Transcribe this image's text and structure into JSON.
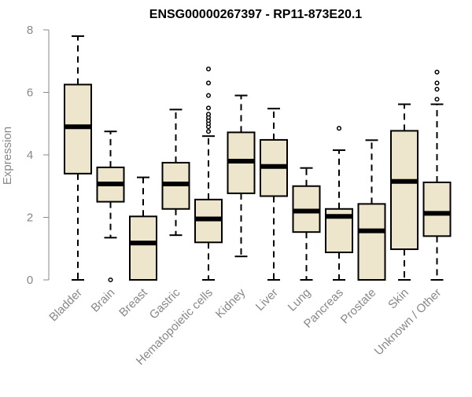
{
  "chart_data": {
    "type": "boxplot",
    "title": "ENSG00000267397 - RP11-873E20.1",
    "ylabel": "Expression",
    "ylim": [
      0,
      8
    ],
    "yticks": [
      "0",
      "2",
      "4",
      "6",
      "8"
    ],
    "categories": [
      "Bladder",
      "Brain",
      "Breast",
      "Gastric",
      "Hematopoietic cells",
      "Kidney",
      "Liver",
      "Lung",
      "Pancreas",
      "Prostate",
      "Skin",
      "Unknown / Other"
    ],
    "boxes": [
      {
        "min": 0.0,
        "q1": 3.4,
        "median": 4.9,
        "q3": 6.25,
        "max": 7.8,
        "outliers": []
      },
      {
        "min": 1.35,
        "q1": 2.5,
        "median": 3.07,
        "q3": 3.6,
        "max": 4.75,
        "outliers": [
          0.0
        ]
      },
      {
        "min": 0.0,
        "q1": 0.0,
        "median": 1.18,
        "q3": 2.03,
        "max": 3.28,
        "outliers": []
      },
      {
        "min": 1.43,
        "q1": 2.27,
        "median": 3.07,
        "q3": 3.75,
        "max": 5.45,
        "outliers": []
      },
      {
        "min": 0.0,
        "q1": 1.2,
        "median": 1.95,
        "q3": 2.57,
        "max": 4.6,
        "outliers": [
          4.75,
          4.9,
          5.0,
          5.1,
          5.2,
          5.3,
          5.5,
          5.9,
          6.3,
          6.75
        ]
      },
      {
        "min": 0.75,
        "q1": 2.77,
        "median": 3.8,
        "q3": 4.72,
        "max": 5.9,
        "outliers": []
      },
      {
        "min": 0.0,
        "q1": 2.68,
        "median": 3.63,
        "q3": 4.48,
        "max": 5.48,
        "outliers": []
      },
      {
        "min": 0.0,
        "q1": 1.53,
        "median": 2.2,
        "q3": 3.0,
        "max": 3.58,
        "outliers": []
      },
      {
        "min": 0.0,
        "q1": 0.88,
        "median": 2.03,
        "q3": 2.27,
        "max": 4.15,
        "outliers": [
          4.85
        ]
      },
      {
        "min": 0.0,
        "q1": 0.0,
        "median": 1.57,
        "q3": 2.43,
        "max": 4.47,
        "outliers": []
      },
      {
        "min": 0.0,
        "q1": 0.98,
        "median": 3.15,
        "q3": 4.77,
        "max": 5.62,
        "outliers": []
      },
      {
        "min": 0.0,
        "q1": 1.4,
        "median": 2.13,
        "q3": 3.12,
        "max": 5.62,
        "outliers": [
          5.78,
          6.1,
          6.3,
          6.65
        ]
      }
    ]
  }
}
